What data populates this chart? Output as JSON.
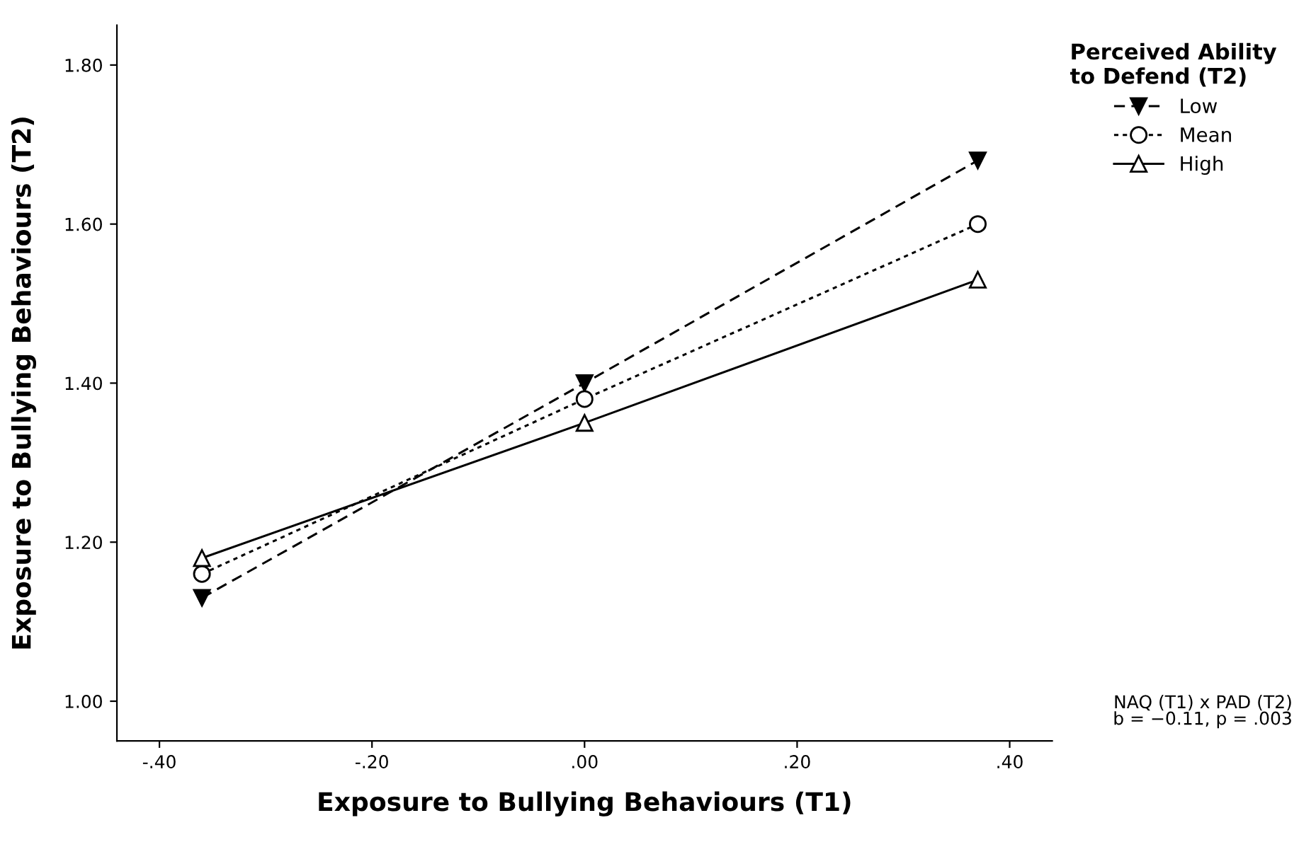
{
  "chart_data": {
    "type": "line",
    "xlabel": "Exposure to Bullying Behaviours (T1)",
    "ylabel": "Exposure to Bullying Behaviours (T2)",
    "legend_title": "Perceived Ability\nto Defend (T2)",
    "legend": "top right",
    "x": [
      -0.36,
      0.0,
      0.37
    ],
    "series": [
      {
        "name": "Low",
        "color": "#000000",
        "values": [
          1.13,
          1.4,
          1.68
        ],
        "marker": "triangle_down",
        "line_style": "dashed"
      },
      {
        "name": "Mean",
        "color": "#000000",
        "values": [
          1.16,
          1.38,
          1.6
        ],
        "marker": "circle",
        "line_style": "dotted"
      },
      {
        "name": "High",
        "color": "#000000",
        "values": [
          1.18,
          1.35,
          1.53
        ],
        "marker": "triangle",
        "line_style": "solid"
      }
    ],
    "xlim": [
      -0.44,
      0.44
    ],
    "ylim": [
      0.95,
      1.85
    ],
    "xticks": [
      {
        "value": -0.4,
        "label": "-.40"
      },
      {
        "value": -0.2,
        "label": "-.20"
      },
      {
        "value": 0,
        "label": ".00"
      },
      {
        "value": 0.2,
        "label": ".20"
      },
      {
        "value": 0.4,
        "label": ".40"
      }
    ],
    "yticks": [
      {
        "value": 1.0,
        "label": "1.00"
      },
      {
        "value": 1.2,
        "label": "1.20"
      },
      {
        "value": 1.4,
        "label": "1.40"
      },
      {
        "value": 1.6,
        "label": "1.60"
      },
      {
        "value": 1.8,
        "label": "1.80"
      }
    ],
    "grid": false,
    "annotations": [
      "NAQ (T1) x PAD (T2)\nb = −0.11, p = .003"
    ]
  }
}
